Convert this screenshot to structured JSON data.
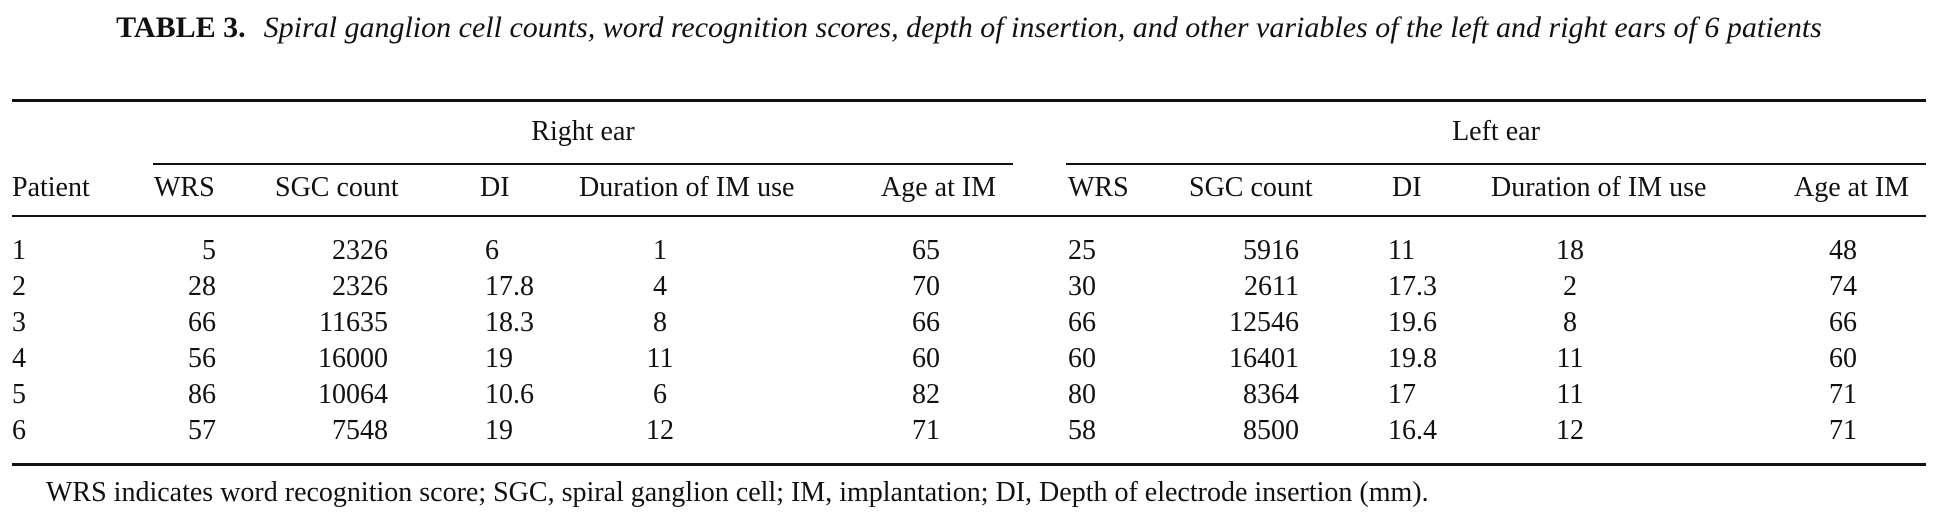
{
  "table": {
    "label": "TABLE 3.",
    "caption": "Spiral ganglion cell counts, word recognition scores, depth of insertion, and other variables of the left and right ears of 6 patients",
    "group_headers": {
      "right": "Right ear",
      "left": "Left ear"
    },
    "columns": {
      "patient": "Patient",
      "right": [
        "WRS",
        "SGC count",
        "DI",
        "Duration of IM use",
        "Age at IM"
      ],
      "left": [
        "WRS",
        "SGC count",
        "DI",
        "Duration of IM use",
        "Age at IM"
      ]
    },
    "rows": [
      {
        "patient": "1",
        "right": [
          "5",
          "2326",
          "6",
          "1",
          "65"
        ],
        "left": [
          "25",
          "5916",
          "11",
          "18",
          "48"
        ]
      },
      {
        "patient": "2",
        "right": [
          "28",
          "2326",
          "17.8",
          "4",
          "70"
        ],
        "left": [
          "30",
          "2611",
          "17.3",
          "2",
          "74"
        ]
      },
      {
        "patient": "3",
        "right": [
          "66",
          "11635",
          "18.3",
          "8",
          "66"
        ],
        "left": [
          "66",
          "12546",
          "19.6",
          "8",
          "66"
        ]
      },
      {
        "patient": "4",
        "right": [
          "56",
          "16000",
          "19",
          "11",
          "60"
        ],
        "left": [
          "60",
          "16401",
          "19.8",
          "11",
          "60"
        ]
      },
      {
        "patient": "5",
        "right": [
          "86",
          "10064",
          "10.6",
          "6",
          "82"
        ],
        "left": [
          "80",
          "8364",
          "17",
          "11",
          "71"
        ]
      },
      {
        "patient": "6",
        "right": [
          "57",
          "7548",
          "19",
          "12",
          "71"
        ],
        "left": [
          "58",
          "8500",
          "16.4",
          "12",
          "71"
        ]
      }
    ],
    "footnote": "WRS indicates word recognition score; SGC, spiral ganglion cell; IM, implantation; DI, Depth of electrode insertion (mm)."
  }
}
